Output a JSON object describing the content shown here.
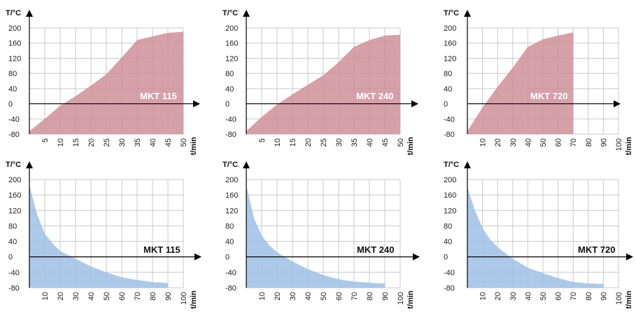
{
  "chart_data": [
    {
      "type": "area",
      "label": "MKT 115",
      "ylabel": "T/°C",
      "xlabel": "t/min",
      "ylim": [
        -80,
        210
      ],
      "xlim": [
        0,
        50
      ],
      "xticks": [
        5,
        10,
        15,
        20,
        25,
        30,
        35,
        40,
        45,
        50
      ],
      "xtick_labels": [
        "5",
        "10",
        "15",
        "20",
        "25",
        "30",
        "35",
        "40",
        "45",
        "50"
      ],
      "yticks": [
        200,
        160,
        120,
        80,
        40,
        0,
        -40,
        -80
      ],
      "ytick_labels": [
        "200",
        "160",
        "120",
        "80",
        "40",
        "0",
        "-40",
        "-80"
      ],
      "x": [
        0,
        5,
        10,
        15,
        20,
        25,
        30,
        35,
        40,
        45,
        50
      ],
      "values": [
        -72,
        -40,
        -5,
        20,
        48,
        78,
        122,
        168,
        178,
        187,
        190
      ],
      "fill": "#cf8f99",
      "label_color": "#ffffff"
    },
    {
      "type": "area",
      "label": "MKT 240",
      "ylabel": "T/°C",
      "xlabel": "t/min",
      "ylim": [
        -80,
        210
      ],
      "xlim": [
        0,
        50
      ],
      "xticks": [
        5,
        10,
        15,
        20,
        25,
        30,
        35,
        40,
        45,
        50
      ],
      "xtick_labels": [
        "5",
        "10",
        "15",
        "20",
        "25",
        "30",
        "35",
        "40",
        "45",
        "50"
      ],
      "yticks": [
        200,
        160,
        120,
        80,
        40,
        0,
        -40,
        -80
      ],
      "ytick_labels": [
        "200",
        "160",
        "120",
        "80",
        "40",
        "0",
        "-40",
        "-80"
      ],
      "x": [
        0,
        5,
        10,
        15,
        20,
        25,
        30,
        35,
        40,
        45,
        50
      ],
      "values": [
        -72,
        -35,
        -2,
        25,
        50,
        75,
        110,
        150,
        168,
        180,
        182
      ],
      "fill": "#cf8f99",
      "label_color": "#ffffff"
    },
    {
      "type": "area",
      "label": "MKT 720",
      "ylabel": "T/°C",
      "xlabel": "t/min",
      "ylim": [
        -80,
        210
      ],
      "xlim": [
        0,
        100
      ],
      "xticks": [
        10,
        20,
        30,
        40,
        50,
        60,
        70,
        80,
        90,
        100
      ],
      "xtick_labels": [
        "10",
        "20",
        "30",
        "40",
        "50",
        "60",
        "70",
        "80",
        "90",
        "100"
      ],
      "yticks": [
        200,
        160,
        120,
        80,
        40,
        0,
        -40,
        -80
      ],
      "ytick_labels": [
        "200",
        "160",
        "120",
        "80",
        "40",
        "0",
        "-40",
        "-80"
      ],
      "x": [
        0,
        10,
        20,
        30,
        40,
        50,
        60,
        70
      ],
      "values": [
        -72,
        -10,
        45,
        95,
        150,
        170,
        180,
        188
      ],
      "fill": "#cf8f99",
      "label_color": "#ffffff"
    },
    {
      "type": "area",
      "label": "MKT 115",
      "ylabel": "T/°C",
      "xlabel": "t/min",
      "ylim": [
        -80,
        210
      ],
      "xlim": [
        0,
        100
      ],
      "xticks": [
        10,
        20,
        30,
        40,
        50,
        60,
        70,
        80,
        90,
        100
      ],
      "xtick_labels": [
        "10",
        "20",
        "30",
        "40",
        "50",
        "60",
        "70",
        "80",
        "90",
        "100"
      ],
      "yticks": [
        200,
        160,
        120,
        80,
        40,
        0,
        -40,
        -80
      ],
      "ytick_labels": [
        "200",
        "160",
        "120",
        "80",
        "40",
        "0",
        "-40",
        "-80"
      ],
      "x": [
        0,
        5,
        10,
        15,
        20,
        30,
        40,
        50,
        60,
        70,
        80,
        90
      ],
      "values": [
        185,
        110,
        60,
        35,
        15,
        -5,
        -25,
        -40,
        -53,
        -60,
        -65,
        -68
      ],
      "fill": "#9fbfe6",
      "label_color": "#111111"
    },
    {
      "type": "area",
      "label": "MKT 240",
      "ylabel": "T/°C",
      "xlabel": "t/min",
      "ylim": [
        -80,
        210
      ],
      "xlim": [
        0,
        100
      ],
      "xticks": [
        10,
        20,
        30,
        40,
        50,
        60,
        70,
        80,
        90,
        100
      ],
      "xtick_labels": [
        "10",
        "20",
        "30",
        "40",
        "50",
        "60",
        "70",
        "80",
        "90",
        "100"
      ],
      "yticks": [
        200,
        160,
        120,
        80,
        40,
        0,
        -40,
        -80
      ],
      "ytick_labels": [
        "200",
        "160",
        "120",
        "80",
        "40",
        "0",
        "-40",
        "-80"
      ],
      "x": [
        0,
        5,
        10,
        15,
        20,
        30,
        40,
        50,
        60,
        70,
        80,
        90
      ],
      "values": [
        185,
        100,
        55,
        30,
        12,
        -12,
        -32,
        -47,
        -58,
        -64,
        -67,
        -69
      ],
      "fill": "#9fbfe6",
      "label_color": "#111111"
    },
    {
      "type": "area",
      "label": "MKT 720",
      "ylabel": "T/°C",
      "xlabel": "t/min",
      "ylim": [
        -80,
        210
      ],
      "xlim": [
        0,
        100
      ],
      "xticks": [
        10,
        20,
        30,
        40,
        50,
        60,
        70,
        80,
        90,
        100
      ],
      "xtick_labels": [
        "10",
        "20",
        "30",
        "40",
        "50",
        "60",
        "70",
        "80",
        "90",
        "100"
      ],
      "yticks": [
        200,
        160,
        120,
        80,
        40,
        0,
        -40,
        -80
      ],
      "ytick_labels": [
        "200",
        "160",
        "120",
        "80",
        "40",
        "0",
        "-40",
        "-80"
      ],
      "x": [
        0,
        5,
        10,
        15,
        20,
        30,
        40,
        50,
        60,
        70,
        80,
        90
      ],
      "values": [
        180,
        120,
        75,
        45,
        25,
        -5,
        -28,
        -42,
        -55,
        -65,
        -69,
        -70
      ],
      "fill": "#9fbfe6",
      "label_color": "#111111"
    }
  ]
}
